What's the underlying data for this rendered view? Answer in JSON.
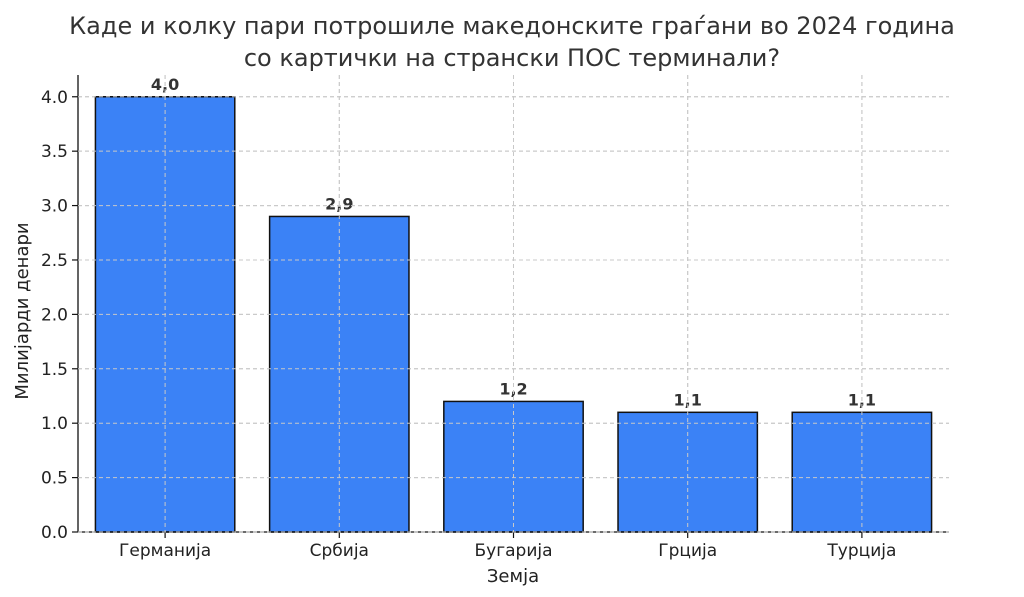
{
  "chart_data": {
    "type": "bar",
    "title_lines": [
      "Каде и колку пари потрошиле македонските граѓани во 2024 година",
      "со картички на странски ПОС терминали?"
    ],
    "xlabel": "Земја",
    "ylabel": "Милијарди денари",
    "categories": [
      "Германија",
      "Србија",
      "Бугарија",
      "Грција",
      "Турција"
    ],
    "values": [
      4.0,
      2.9,
      1.2,
      1.1,
      1.1
    ],
    "value_labels": [
      "4,0",
      "2,9",
      "1,2",
      "1,1",
      "1,1"
    ],
    "ylim": [
      0,
      4.2
    ],
    "yticks": [
      0.0,
      0.5,
      1.0,
      1.5,
      2.0,
      2.5,
      3.0,
      3.5,
      4.0
    ],
    "ytick_labels": [
      "0.0",
      "0.5",
      "1.0",
      "1.5",
      "2.0",
      "2.5",
      "3.0",
      "3.5",
      "4.0"
    ],
    "grid": true,
    "bar_color": "#3b82f6",
    "edge_color": "#111111"
  }
}
